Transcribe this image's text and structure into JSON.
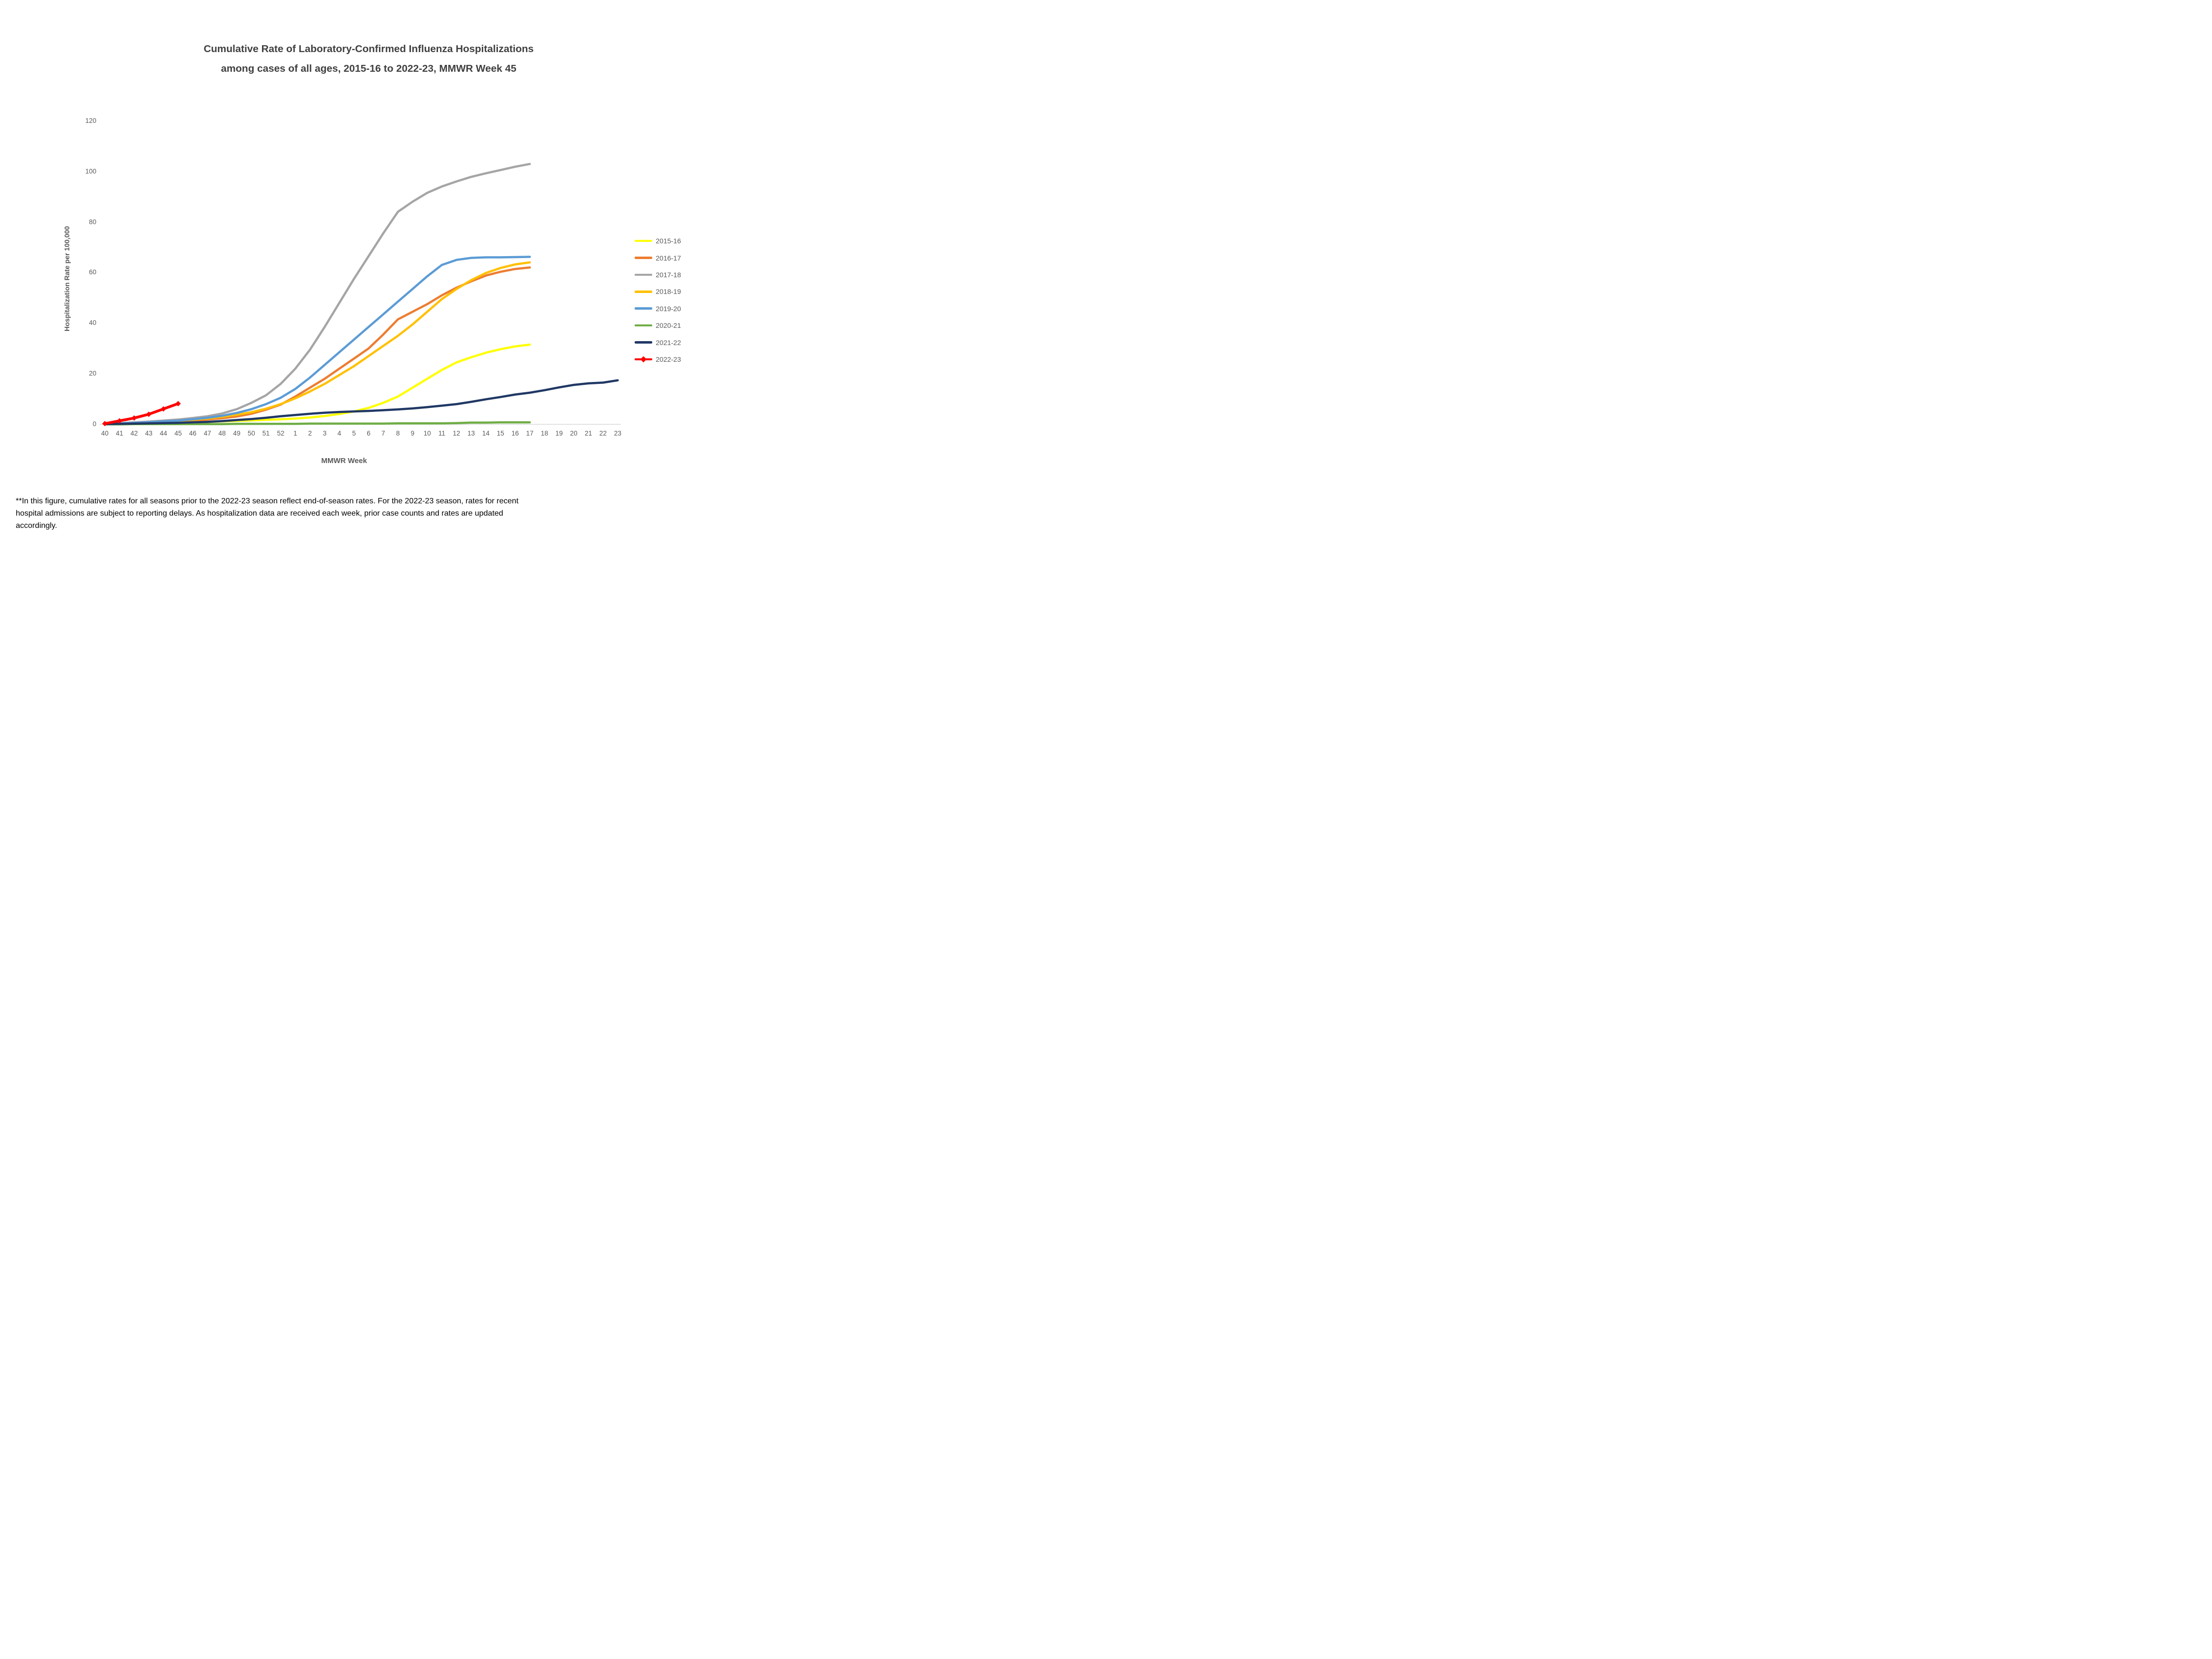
{
  "title": {
    "line1": "Cumulative Rate of Laboratory-Confirmed Influenza Hospitalizations",
    "line2": "among cases of all ages, 2015-16 to 2022-23, MMWR Week 45"
  },
  "footnote": {
    "line1": "**In this figure, cumulative rates for all seasons prior to the 2022-23 season reflect end-of-season rates. For the 2022-23 season, rates for recent",
    "line2": "hospital admissions are subject to reporting delays. As hospitalization data are received each week, prior case counts and rates are updated",
    "line3": "accordingly."
  },
  "chart_data": {
    "type": "line",
    "title": "Cumulative Rate of Laboratory-Confirmed Influenza Hospitalizations among cases of all ages, 2015-16 to 2022-23, MMWR Week 45",
    "xlabel": "MMWR Week",
    "ylabel": "Hospitalization Rate per 100,000",
    "ylim": [
      0,
      120
    ],
    "y_ticks": [
      0,
      20,
      40,
      60,
      80,
      100,
      120
    ],
    "grid": false,
    "legend_position": "right",
    "axis_line_color": "#d9d9d9",
    "x_categories": [
      "40",
      "41",
      "42",
      "43",
      "44",
      "45",
      "46",
      "47",
      "48",
      "49",
      "50",
      "51",
      "52",
      "1",
      "2",
      "3",
      "4",
      "5",
      "6",
      "7",
      "8",
      "9",
      "10",
      "11",
      "12",
      "13",
      "14",
      "15",
      "16",
      "17",
      "18",
      "19",
      "20",
      "21",
      "22",
      "23"
    ],
    "series": [
      {
        "name": "2015-16",
        "color": "#FFFF00",
        "values": [
          0.1,
          0.2,
          0.3,
          0.4,
          0.6,
          0.7,
          0.9,
          1.0,
          1.2,
          1.4,
          1.6,
          1.8,
          2.0,
          2.3,
          2.7,
          3.3,
          4.1,
          5.1,
          6.5,
          8.5,
          11.0,
          14.5,
          18.0,
          21.5,
          24.5,
          26.5,
          28.3,
          29.7,
          30.8,
          31.5
        ]
      },
      {
        "name": "2016-17",
        "color": "#ED7D31",
        "values": [
          0.2,
          0.3,
          0.5,
          0.7,
          0.9,
          1.2,
          1.5,
          1.9,
          2.4,
          3.1,
          4.2,
          5.8,
          7.8,
          11.0,
          14.5,
          18.0,
          22.0,
          26.0,
          30.0,
          35.5,
          41.5,
          44.5,
          47.5,
          51.0,
          54.0,
          56.5,
          58.8,
          60.3,
          61.4,
          62.0
        ]
      },
      {
        "name": "2017-18",
        "color": "#A5A5A5",
        "values": [
          0.3,
          0.5,
          0.8,
          1.1,
          1.5,
          1.9,
          2.5,
          3.2,
          4.3,
          6.0,
          8.5,
          11.5,
          16.0,
          22.0,
          29.5,
          38.5,
          48.0,
          57.5,
          66.5,
          75.5,
          84.0,
          88.0,
          91.5,
          94.0,
          96.0,
          97.8,
          99.2,
          100.5,
          101.8,
          102.9
        ]
      },
      {
        "name": "2018-19",
        "color": "#FFC000",
        "values": [
          0.2,
          0.3,
          0.5,
          0.8,
          1.1,
          1.4,
          1.8,
          2.3,
          3.0,
          3.8,
          4.8,
          6.2,
          8.0,
          10.3,
          13.0,
          16.0,
          19.5,
          23.0,
          27.0,
          31.0,
          35.0,
          39.5,
          44.5,
          49.5,
          53.5,
          57.0,
          59.8,
          61.8,
          63.2,
          64.0
        ]
      },
      {
        "name": "2019-20",
        "color": "#5B9BD5",
        "values": [
          0.2,
          0.4,
          0.6,
          0.9,
          1.2,
          1.5,
          2.0,
          2.6,
          3.4,
          4.5,
          6.0,
          8.0,
          10.5,
          14.0,
          18.5,
          23.5,
          28.5,
          33.5,
          38.5,
          43.5,
          48.5,
          53.5,
          58.5,
          63.0,
          65.0,
          65.8,
          66.0,
          66.0,
          66.1,
          66.2
        ]
      },
      {
        "name": "2020-21",
        "color": "#70AD47",
        "values": [
          0.0,
          0.0,
          0.1,
          0.1,
          0.1,
          0.1,
          0.1,
          0.1,
          0.1,
          0.2,
          0.2,
          0.2,
          0.2,
          0.2,
          0.3,
          0.3,
          0.3,
          0.3,
          0.3,
          0.3,
          0.4,
          0.4,
          0.4,
          0.4,
          0.5,
          0.7,
          0.7,
          0.8,
          0.8,
          0.8
        ]
      },
      {
        "name": "2021-22",
        "color": "#203864",
        "values": [
          0.1,
          0.2,
          0.3,
          0.4,
          0.5,
          0.6,
          0.8,
          1.0,
          1.3,
          1.7,
          2.1,
          2.6,
          3.2,
          3.7,
          4.2,
          4.6,
          4.9,
          5.1,
          5.3,
          5.6,
          5.9,
          6.3,
          6.8,
          7.4,
          8.0,
          8.9,
          9.9,
          10.8,
          11.8,
          12.5,
          13.5,
          14.6,
          15.6,
          16.2,
          16.5,
          17.4
        ]
      },
      {
        "name": "2022-23",
        "color": "#FF0000",
        "marker": "diamond",
        "values": [
          0.3,
          1.4,
          2.5,
          4.0,
          6.1,
          8.2
        ]
      }
    ]
  }
}
